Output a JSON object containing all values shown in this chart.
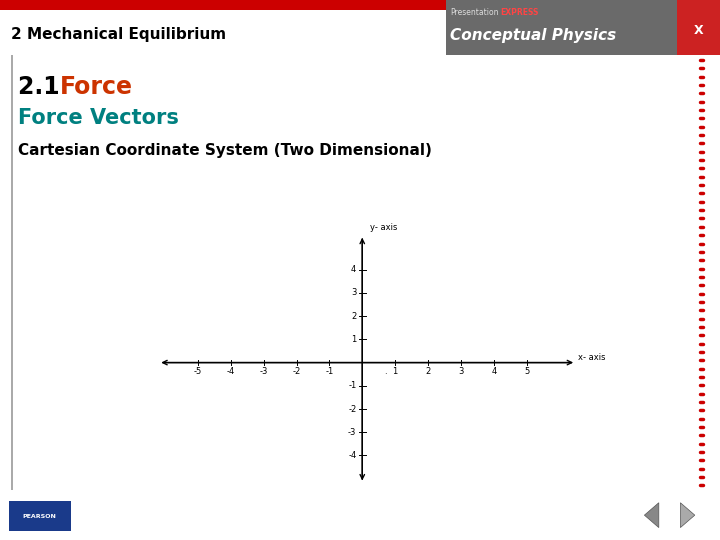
{
  "slide_bg": "#ffffff",
  "header_bg": "#b8b8b8",
  "header_text": "2 Mechanical Equilibrium",
  "header_text_color": "#000000",
  "top_bar_color": "#cc0000",
  "right_border_color": "#cc0000",
  "title1_black": "2.1 ",
  "title1_red": "Force",
  "title1_red_color": "#cc3300",
  "title2": "Force Vectors",
  "title2_color": "#008080",
  "subtitle": "Cartesian Coordinate System (Two Dimensional)",
  "subtitle_color": "#000000",
  "axis_xlim": [
    -6.2,
    6.5
  ],
  "axis_ylim": [
    -5.2,
    5.5
  ],
  "x_ticks": [
    -5,
    -4,
    -3,
    -2,
    -1,
    1,
    2,
    3,
    4,
    5
  ],
  "y_ticks": [
    -4,
    -3,
    -2,
    -1,
    1,
    2,
    3,
    4
  ],
  "x_label": "x- axis",
  "y_label": "y- axis",
  "axis_color": "#000000",
  "tick_label_color": "#000000",
  "tick_fontsize": 6,
  "axis_label_fontsize": 6,
  "pearson_logo_color": "#1a3a8a",
  "conceptual_physics_text": "Conceptual Physics",
  "cp_right_bg": "#6a6a6a",
  "x_button_color": "#cc2222"
}
